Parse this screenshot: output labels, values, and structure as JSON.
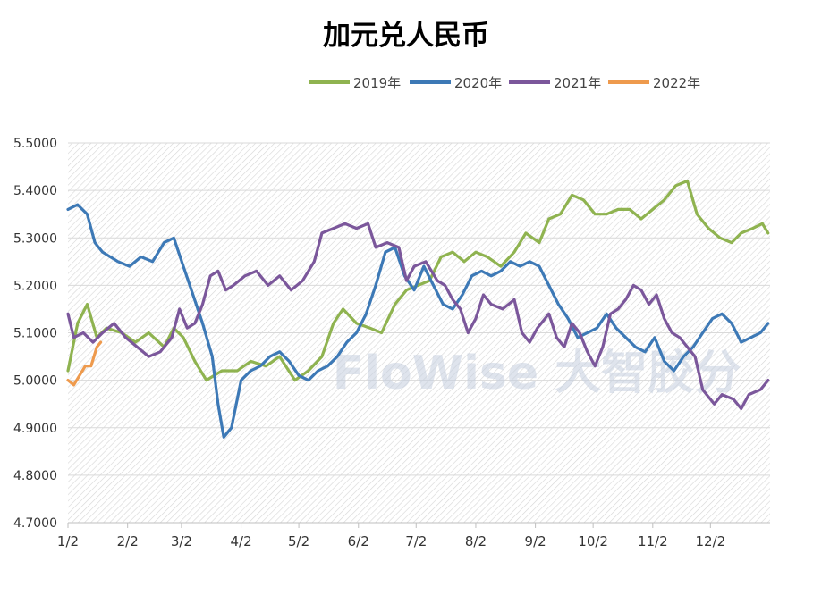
{
  "chart_data": {
    "type": "line",
    "title": "加元兑人民币",
    "xlabel": "",
    "ylabel": "",
    "ylim": [
      4.7,
      5.5
    ],
    "yticks": [
      "5.5000",
      "5.4000",
      "5.3000",
      "5.2000",
      "5.1000",
      "5.0000",
      "4.9000",
      "4.8000",
      "4.7000"
    ],
    "x_months": [
      "1/2",
      "2/2",
      "3/2",
      "4/2",
      "5/2",
      "6/2",
      "7/2",
      "8/2",
      "9/2",
      "10/2",
      "11/2",
      "12/2"
    ],
    "grid": true,
    "legend_position": "top",
    "watermark": "FloWise 大智胶分",
    "series": [
      {
        "name": "2019年",
        "color": "#8fb350",
        "points": [
          [
            0,
            5.02
          ],
          [
            5,
            5.12
          ],
          [
            10,
            5.16
          ],
          [
            15,
            5.09
          ],
          [
            20,
            5.11
          ],
          [
            28,
            5.1
          ],
          [
            35,
            5.08
          ],
          [
            42,
            5.1
          ],
          [
            50,
            5.07
          ],
          [
            55,
            5.11
          ],
          [
            60,
            5.09
          ],
          [
            66,
            5.04
          ],
          [
            72,
            5.0
          ],
          [
            80,
            5.02
          ],
          [
            88,
            5.02
          ],
          [
            95,
            5.04
          ],
          [
            103,
            5.03
          ],
          [
            110,
            5.05
          ],
          [
            118,
            5.0
          ],
          [
            125,
            5.02
          ],
          [
            132,
            5.05
          ],
          [
            138,
            5.12
          ],
          [
            143,
            5.15
          ],
          [
            150,
            5.12
          ],
          [
            157,
            5.11
          ],
          [
            163,
            5.1
          ],
          [
            170,
            5.16
          ],
          [
            176,
            5.19
          ],
          [
            182,
            5.2
          ],
          [
            188,
            5.21
          ],
          [
            194,
            5.26
          ],
          [
            200,
            5.27
          ],
          [
            206,
            5.25
          ],
          [
            212,
            5.27
          ],
          [
            218,
            5.26
          ],
          [
            225,
            5.24
          ],
          [
            232,
            5.27
          ],
          [
            238,
            5.31
          ],
          [
            245,
            5.29
          ],
          [
            250,
            5.34
          ],
          [
            256,
            5.35
          ],
          [
            262,
            5.39
          ],
          [
            268,
            5.38
          ],
          [
            274,
            5.35
          ],
          [
            280,
            5.35
          ],
          [
            286,
            5.36
          ],
          [
            292,
            5.36
          ],
          [
            298,
            5.34
          ],
          [
            304,
            5.36
          ],
          [
            310,
            5.38
          ],
          [
            316,
            5.41
          ],
          [
            322,
            5.42
          ],
          [
            327,
            5.35
          ],
          [
            333,
            5.32
          ],
          [
            339,
            5.3
          ],
          [
            345,
            5.29
          ],
          [
            350,
            5.31
          ],
          [
            356,
            5.32
          ],
          [
            361,
            5.33
          ],
          [
            364,
            5.31
          ]
        ]
      },
      {
        "name": "2020年",
        "color": "#3d79b6",
        "points": [
          [
            0,
            5.36
          ],
          [
            5,
            5.37
          ],
          [
            10,
            5.35
          ],
          [
            14,
            5.29
          ],
          [
            18,
            5.27
          ],
          [
            22,
            5.26
          ],
          [
            26,
            5.25
          ],
          [
            32,
            5.24
          ],
          [
            38,
            5.26
          ],
          [
            44,
            5.25
          ],
          [
            50,
            5.29
          ],
          [
            55,
            5.3
          ],
          [
            60,
            5.24
          ],
          [
            65,
            5.18
          ],
          [
            70,
            5.12
          ],
          [
            75,
            5.05
          ],
          [
            78,
            4.95
          ],
          [
            81,
            4.88
          ],
          [
            85,
            4.9
          ],
          [
            90,
            5.0
          ],
          [
            95,
            5.02
          ],
          [
            100,
            5.03
          ],
          [
            105,
            5.05
          ],
          [
            110,
            5.06
          ],
          [
            115,
            5.04
          ],
          [
            120,
            5.01
          ],
          [
            125,
            5.0
          ],
          [
            130,
            5.02
          ],
          [
            135,
            5.03
          ],
          [
            140,
            5.05
          ],
          [
            145,
            5.08
          ],
          [
            150,
            5.1
          ],
          [
            155,
            5.14
          ],
          [
            160,
            5.2
          ],
          [
            165,
            5.27
          ],
          [
            170,
            5.28
          ],
          [
            175,
            5.22
          ],
          [
            180,
            5.19
          ],
          [
            185,
            5.24
          ],
          [
            190,
            5.2
          ],
          [
            195,
            5.16
          ],
          [
            200,
            5.15
          ],
          [
            205,
            5.18
          ],
          [
            210,
            5.22
          ],
          [
            215,
            5.23
          ],
          [
            220,
            5.22
          ],
          [
            225,
            5.23
          ],
          [
            230,
            5.25
          ],
          [
            235,
            5.24
          ],
          [
            240,
            5.25
          ],
          [
            245,
            5.24
          ],
          [
            250,
            5.2
          ],
          [
            255,
            5.16
          ],
          [
            260,
            5.13
          ],
          [
            265,
            5.09
          ],
          [
            270,
            5.1
          ],
          [
            275,
            5.11
          ],
          [
            280,
            5.14
          ],
          [
            285,
            5.11
          ],
          [
            290,
            5.09
          ],
          [
            295,
            5.07
          ],
          [
            300,
            5.06
          ],
          [
            305,
            5.09
          ],
          [
            310,
            5.04
          ],
          [
            315,
            5.02
          ],
          [
            320,
            5.05
          ],
          [
            325,
            5.07
          ],
          [
            330,
            5.1
          ],
          [
            335,
            5.13
          ],
          [
            340,
            5.14
          ],
          [
            345,
            5.12
          ],
          [
            350,
            5.08
          ],
          [
            355,
            5.09
          ],
          [
            360,
            5.1
          ],
          [
            364,
            5.12
          ]
        ]
      },
      {
        "name": "2021年",
        "color": "#7b579b",
        "points": [
          [
            0,
            5.14
          ],
          [
            3,
            5.09
          ],
          [
            8,
            5.1
          ],
          [
            13,
            5.08
          ],
          [
            18,
            5.1
          ],
          [
            24,
            5.12
          ],
          [
            30,
            5.09
          ],
          [
            36,
            5.07
          ],
          [
            42,
            5.05
          ],
          [
            48,
            5.06
          ],
          [
            54,
            5.09
          ],
          [
            58,
            5.15
          ],
          [
            62,
            5.11
          ],
          [
            66,
            5.12
          ],
          [
            70,
            5.16
          ],
          [
            74,
            5.22
          ],
          [
            78,
            5.23
          ],
          [
            82,
            5.19
          ],
          [
            86,
            5.2
          ],
          [
            92,
            5.22
          ],
          [
            98,
            5.23
          ],
          [
            104,
            5.2
          ],
          [
            110,
            5.22
          ],
          [
            116,
            5.19
          ],
          [
            122,
            5.21
          ],
          [
            128,
            5.25
          ],
          [
            132,
            5.31
          ],
          [
            138,
            5.32
          ],
          [
            144,
            5.33
          ],
          [
            150,
            5.32
          ],
          [
            156,
            5.33
          ],
          [
            160,
            5.28
          ],
          [
            166,
            5.29
          ],
          [
            172,
            5.28
          ],
          [
            176,
            5.21
          ],
          [
            180,
            5.24
          ],
          [
            186,
            5.25
          ],
          [
            192,
            5.21
          ],
          [
            196,
            5.2
          ],
          [
            200,
            5.17
          ],
          [
            204,
            5.15
          ],
          [
            208,
            5.1
          ],
          [
            212,
            5.13
          ],
          [
            216,
            5.18
          ],
          [
            220,
            5.16
          ],
          [
            226,
            5.15
          ],
          [
            232,
            5.17
          ],
          [
            236,
            5.1
          ],
          [
            240,
            5.08
          ],
          [
            244,
            5.11
          ],
          [
            250,
            5.14
          ],
          [
            254,
            5.09
          ],
          [
            258,
            5.07
          ],
          [
            262,
            5.12
          ],
          [
            266,
            5.1
          ],
          [
            270,
            5.06
          ],
          [
            274,
            5.03
          ],
          [
            278,
            5.07
          ],
          [
            282,
            5.14
          ],
          [
            286,
            5.15
          ],
          [
            290,
            5.17
          ],
          [
            294,
            5.2
          ],
          [
            298,
            5.19
          ],
          [
            302,
            5.16
          ],
          [
            306,
            5.18
          ],
          [
            310,
            5.13
          ],
          [
            314,
            5.1
          ],
          [
            318,
            5.09
          ],
          [
            322,
            5.07
          ],
          [
            326,
            5.05
          ],
          [
            330,
            4.98
          ],
          [
            336,
            4.95
          ],
          [
            340,
            4.97
          ],
          [
            346,
            4.96
          ],
          [
            350,
            4.94
          ],
          [
            354,
            4.97
          ],
          [
            360,
            4.98
          ],
          [
            364,
            5.0
          ]
        ]
      },
      {
        "name": "2022年",
        "color": "#ee9a4d",
        "points": [
          [
            0,
            5.0
          ],
          [
            3,
            4.99
          ],
          [
            6,
            5.01
          ],
          [
            9,
            5.03
          ],
          [
            12,
            5.03
          ],
          [
            15,
            5.07
          ],
          [
            17,
            5.08
          ]
        ]
      }
    ]
  }
}
